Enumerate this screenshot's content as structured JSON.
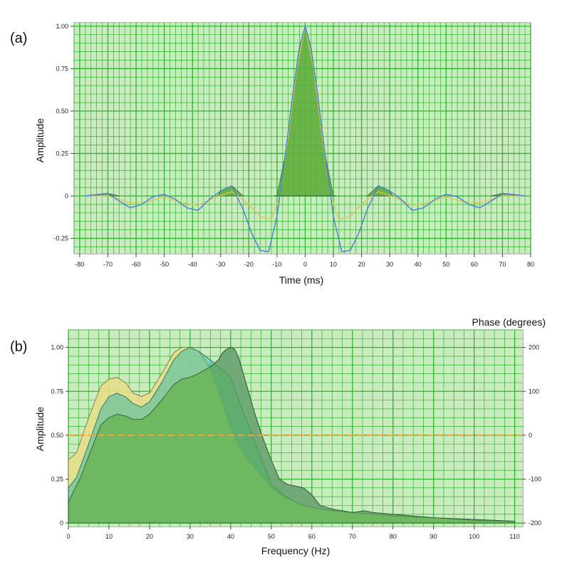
{
  "colors": {
    "grid": "#2fb52f",
    "plot_bg": "#c9ecbf",
    "frame": "#666666",
    "green_fill": "#5fae3c",
    "yellow_fill": "#e6e08a",
    "teal_fill": "#3fb9a6",
    "blue_fill": "#8a9ed6",
    "blue_line": "#4a7fd8",
    "yellow_line": "#e2c257",
    "phase_line": "#f2a23a"
  },
  "chart_data": [
    {
      "id": "a",
      "panel_label": "(a)",
      "type": "line",
      "xlabel": "Time (ms)",
      "ylabel": "Amplitude",
      "xlim": [
        -82,
        80
      ],
      "ylim": [
        -0.34,
        1.02
      ],
      "xticks": [
        -80,
        -70,
        -60,
        -50,
        -40,
        -30,
        -20,
        -10,
        0,
        10,
        20,
        30,
        40,
        50,
        60,
        70,
        80
      ],
      "yticks": [
        -0.25,
        0,
        0.25,
        0.5,
        0.75,
        1.0
      ],
      "ytick_labels": [
        "-0.25",
        "0",
        "0.25",
        "0.50",
        "0.75",
        "1.00"
      ],
      "grid": true,
      "series": [
        {
          "x": [
            -78,
            -73,
            -70,
            -66,
            -62,
            -58,
            -54,
            -50,
            -46,
            -42,
            -38,
            -34,
            -30,
            -26,
            -22,
            -19,
            -16,
            -13,
            -10,
            -7,
            -4,
            -2,
            0,
            2,
            4,
            7,
            10,
            13,
            16,
            19,
            22,
            26,
            30,
            34,
            38,
            42,
            46,
            50,
            54,
            58,
            62,
            66,
            70,
            73,
            78
          ],
          "y": [
            0.0,
            0.01,
            0.015,
            -0.03,
            -0.07,
            -0.05,
            -0.005,
            0.01,
            -0.02,
            -0.07,
            -0.085,
            -0.02,
            0.03,
            0.06,
            -0.08,
            -0.22,
            -0.32,
            -0.33,
            -0.12,
            0.25,
            0.65,
            0.88,
            1.0,
            0.88,
            0.65,
            0.25,
            -0.12,
            -0.33,
            -0.32,
            -0.22,
            -0.08,
            0.06,
            0.03,
            -0.02,
            -0.085,
            -0.07,
            -0.02,
            0.01,
            -0.005,
            -0.05,
            -0.07,
            -0.03,
            0.015,
            0.01,
            0.0
          ]
        },
        {
          "x": [
            -78,
            -70,
            -62,
            -56,
            -50,
            -44,
            -38,
            -32,
            -26,
            -20,
            -16,
            -12,
            -9,
            -6,
            -3,
            0,
            3,
            6,
            9,
            12,
            16,
            20,
            26,
            32,
            38,
            44,
            50,
            56,
            62,
            70,
            78
          ],
          "y": [
            0.0,
            0.0,
            -0.04,
            -0.035,
            -0.005,
            -0.04,
            -0.055,
            -0.01,
            0.025,
            -0.05,
            -0.12,
            -0.14,
            0.0,
            0.35,
            0.75,
            1.0,
            0.75,
            0.35,
            0.0,
            -0.14,
            -0.12,
            -0.05,
            0.025,
            -0.01,
            -0.055,
            -0.04,
            -0.005,
            -0.035,
            -0.04,
            0.0,
            0.0
          ]
        }
      ]
    },
    {
      "id": "b",
      "panel_label": "(b)",
      "type": "area",
      "xlabel": "Frequency (Hz)",
      "ylabel": "Amplitude",
      "y2label": "Phase (degrees)",
      "xlim": [
        0,
        112
      ],
      "ylim": [
        -0.02,
        1.1
      ],
      "y2lim": [
        -208,
        240
      ],
      "xticks": [
        0,
        10,
        20,
        30,
        40,
        50,
        60,
        70,
        80,
        90,
        100,
        110
      ],
      "yticks": [
        0,
        0.25,
        0.5,
        0.75,
        1.0
      ],
      "ytick_labels": [
        "0",
        "0.25",
        "0.50",
        "0.75",
        "1.00"
      ],
      "y2ticks": [
        -200,
        -100,
        0,
        100,
        200
      ],
      "grid": true,
      "series": [
        {
          "x": [
            0,
            2,
            5,
            8,
            10,
            12,
            14,
            16,
            18,
            20,
            23,
            26,
            28,
            30,
            32,
            35,
            38,
            40,
            42,
            45,
            48,
            50,
            53,
            56,
            58,
            60,
            62,
            65,
            70,
            75,
            80,
            90,
            100,
            110
          ],
          "y": [
            0.36,
            0.4,
            0.6,
            0.78,
            0.82,
            0.83,
            0.8,
            0.74,
            0.72,
            0.74,
            0.85,
            0.97,
            1.0,
            1.0,
            0.98,
            0.88,
            0.68,
            0.54,
            0.44,
            0.34,
            0.26,
            0.2,
            0.15,
            0.12,
            0.1,
            0.09,
            0.08,
            0.07,
            0.06,
            0.05,
            0.04,
            0.03,
            0.015,
            0.01
          ]
        },
        {
          "x": [
            0,
            2,
            5,
            8,
            10,
            12,
            14,
            16,
            18,
            20,
            23,
            26,
            28,
            30,
            32,
            35,
            38,
            40,
            42,
            45,
            48,
            50,
            53,
            56,
            58,
            60,
            62,
            65,
            70,
            75,
            80,
            90,
            100,
            110
          ],
          "y": [
            0.2,
            0.26,
            0.45,
            0.65,
            0.72,
            0.74,
            0.72,
            0.68,
            0.66,
            0.69,
            0.8,
            0.93,
            0.98,
            1.0,
            0.98,
            0.93,
            0.87,
            0.83,
            0.7,
            0.52,
            0.34,
            0.22,
            0.16,
            0.12,
            0.1,
            0.09,
            0.08,
            0.07,
            0.06,
            0.05,
            0.04,
            0.03,
            0.015,
            0.01
          ]
        },
        {
          "x": [
            0,
            3,
            6,
            8,
            10,
            12,
            14,
            16,
            18,
            20,
            23,
            26,
            28,
            30,
            32,
            35,
            37,
            38,
            39,
            40,
            41,
            42,
            44,
            46,
            48,
            50,
            52,
            54,
            56,
            58,
            60,
            62,
            65,
            70,
            73,
            75,
            80,
            90,
            100,
            110
          ],
          "y": [
            0.12,
            0.26,
            0.44,
            0.56,
            0.6,
            0.62,
            0.61,
            0.59,
            0.59,
            0.62,
            0.7,
            0.79,
            0.82,
            0.83,
            0.85,
            0.89,
            0.93,
            0.97,
            0.99,
            1.0,
            0.99,
            0.94,
            0.78,
            0.62,
            0.48,
            0.36,
            0.25,
            0.22,
            0.21,
            0.2,
            0.16,
            0.1,
            0.08,
            0.06,
            0.07,
            0.06,
            0.05,
            0.03,
            0.02,
            0.01
          ]
        },
        {
          "x": [
            0,
            112
          ],
          "y2": [
            0,
            0
          ]
        }
      ]
    }
  ]
}
